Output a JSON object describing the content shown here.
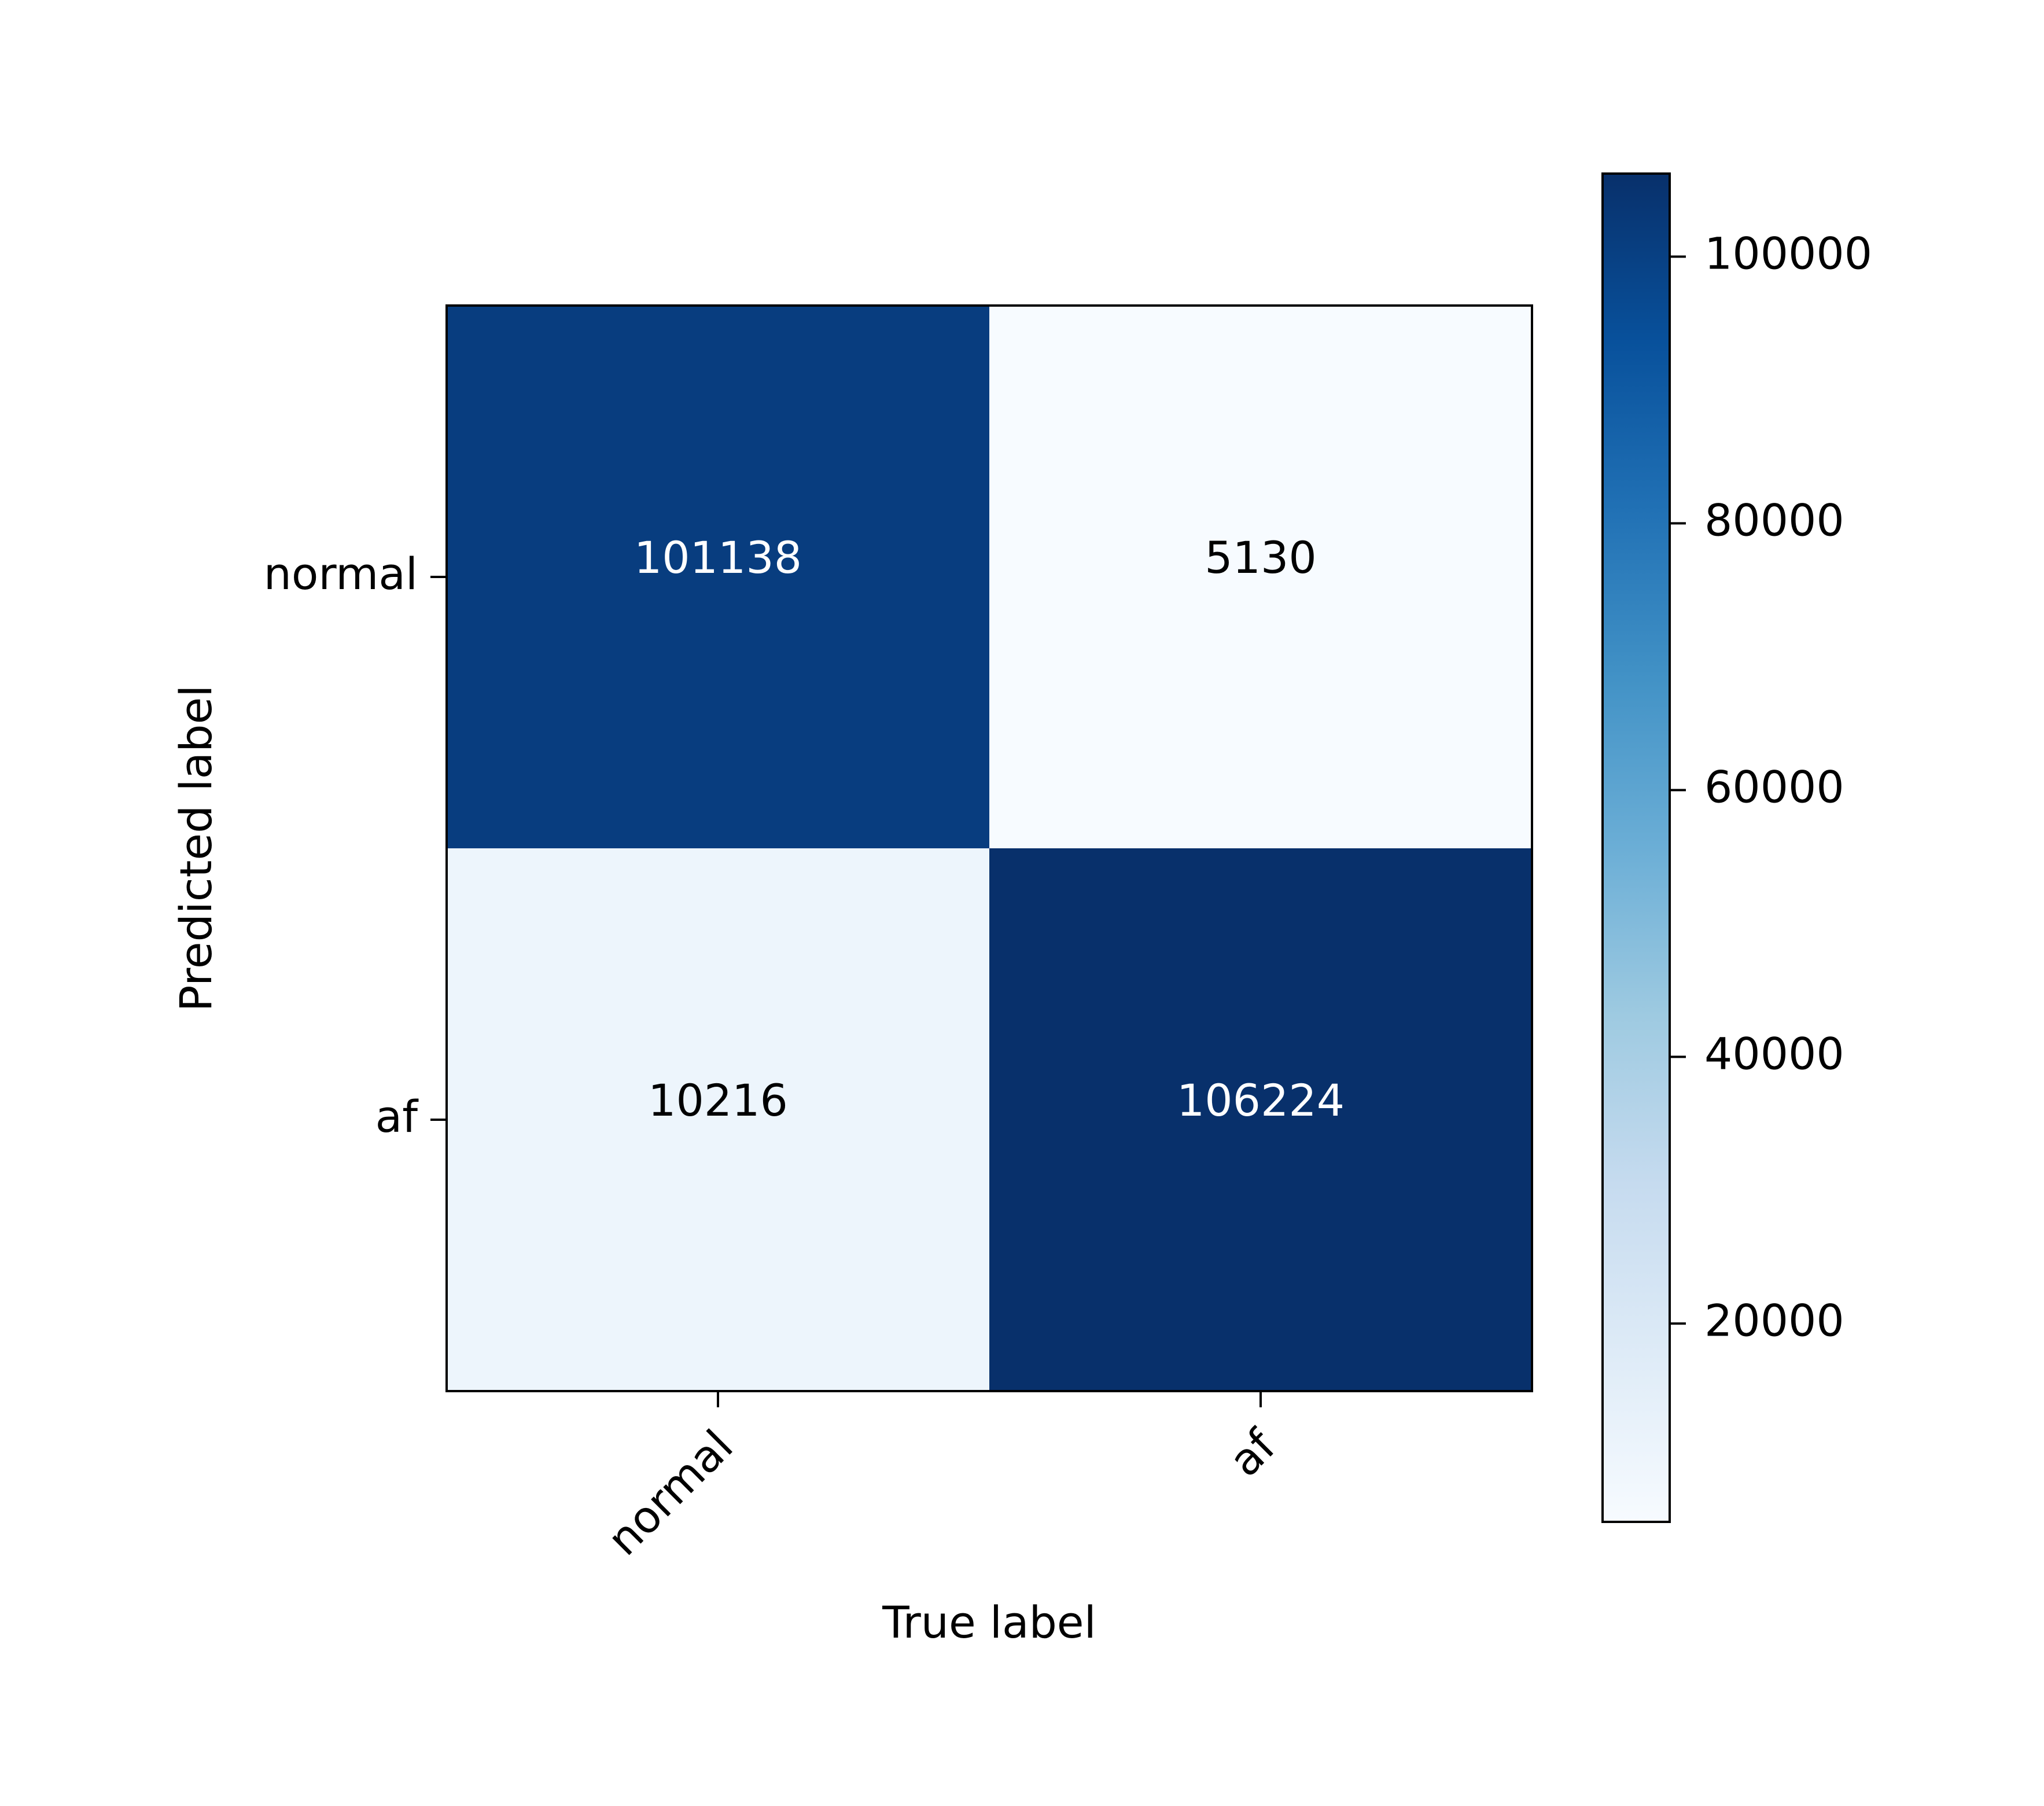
{
  "chart_data": {
    "type": "heatmap",
    "title": "",
    "xlabel": "True label",
    "ylabel": "Predicted label",
    "x_categories": [
      "normal",
      "af"
    ],
    "y_categories": [
      "normal",
      "af"
    ],
    "matrix": [
      [
        101138,
        5130
      ],
      [
        10216,
        106224
      ]
    ],
    "matrix_labels": [
      [
        "101138",
        "5130"
      ],
      [
        "10216",
        "106224"
      ]
    ],
    "colormap": "Blues",
    "colors": {
      "low": "#f7fbff",
      "high": "#08306b",
      "dark_text": "#000000",
      "light_text": "#ffffff"
    },
    "colorbar": {
      "range": [
        5130,
        106224
      ],
      "ticks": [
        20000,
        40000,
        60000,
        80000,
        100000
      ],
      "tick_labels": [
        "20000",
        "40000",
        "60000",
        "80000",
        "100000"
      ]
    },
    "grid": false
  }
}
